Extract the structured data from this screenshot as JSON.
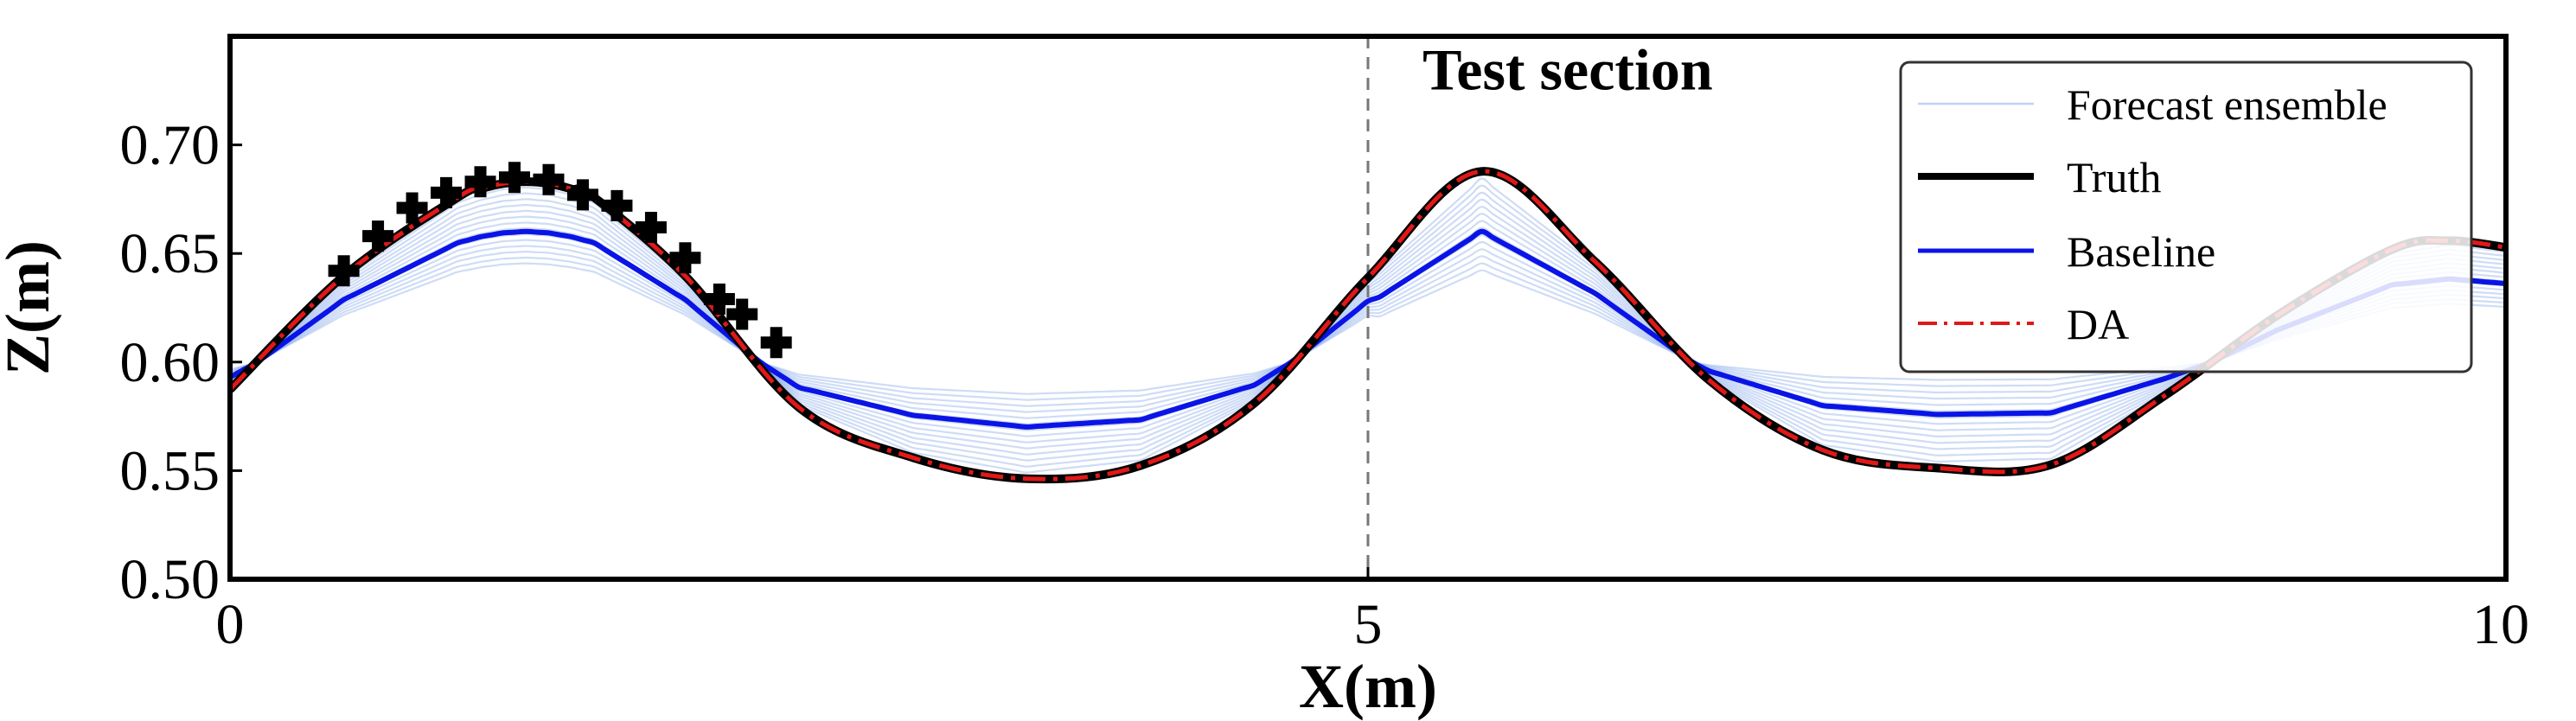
{
  "chart_data": {
    "type": "line",
    "xlabel": "X(m)",
    "ylabel": "Z(m)",
    "xlim": [
      0,
      10
    ],
    "ylim": [
      0.5,
      0.75
    ],
    "xticks": [
      0,
      5,
      10
    ],
    "xtick_labels": [
      "0",
      "5",
      "10"
    ],
    "yticks": [
      0.5,
      0.55,
      0.6,
      0.65,
      0.7
    ],
    "ytick_labels": [
      "0.50",
      "0.55",
      "0.60",
      "0.65",
      "0.70"
    ],
    "grid": false,
    "legend_position": "top-right",
    "annotations": [
      {
        "text": "Test section",
        "x": 5.24,
        "y": 0.7255
      }
    ],
    "vline": {
      "x": 5,
      "style": "dashed",
      "color": "#777777"
    },
    "truth": [
      [
        0.0,
        0.5874
      ],
      [
        0.5,
        0.6397
      ],
      [
        1.0,
        0.6758
      ],
      [
        1.1,
        0.6797
      ],
      [
        1.2,
        0.6822
      ],
      [
        1.3,
        0.6831
      ],
      [
        1.4,
        0.6822
      ],
      [
        1.5,
        0.6797
      ],
      [
        1.6,
        0.6758
      ],
      [
        2.0,
        0.6397
      ],
      [
        2.5,
        0.5791
      ],
      [
        3.0,
        0.556
      ],
      [
        3.5,
        0.5463
      ],
      [
        4.0,
        0.5523
      ],
      [
        4.5,
        0.581
      ],
      [
        5.0,
        0.6388
      ],
      [
        5.5,
        0.6878
      ],
      [
        6.0,
        0.646
      ],
      [
        6.5,
        0.5916
      ],
      [
        7.0,
        0.5594
      ],
      [
        7.5,
        0.5512
      ],
      [
        8.0,
        0.5527
      ],
      [
        8.5,
        0.5845
      ],
      [
        9.0,
        0.6218
      ],
      [
        9.5,
        0.6519
      ],
      [
        9.75,
        0.6559
      ],
      [
        10.0,
        0.6528
      ]
    ],
    "series": [
      {
        "name": "Forecast ensemble",
        "color": "#1f5fd6",
        "members": [
          {
            "amp1": 0.0028,
            "amp2": 0.0032
          },
          {
            "amp1": 0.0055,
            "amp2": 0.0063
          },
          {
            "amp1": 0.0083,
            "amp2": 0.0095
          },
          {
            "amp1": 0.011,
            "amp2": 0.0126
          },
          {
            "amp1": 0.0138,
            "amp2": 0.0158
          },
          {
            "amp1": 0.0165,
            "amp2": 0.0189
          },
          {
            "amp1": 0.0193,
            "amp2": 0.0221
          },
          {
            "amp1": 0.022,
            "amp2": 0.0252
          },
          {
            "amp1": 0.0248,
            "amp2": 0.0284
          },
          {
            "amp1": 0.0275,
            "amp2": 0.0315
          },
          {
            "amp1": 0.0303,
            "amp2": 0.0347
          },
          {
            "amp1": 0.033,
            "amp2": 0.0378
          },
          {
            "amp1": 0.0358,
            "amp2": 0.041
          },
          {
            "amp1": 0.0385,
            "amp2": 0.0441
          }
        ]
      },
      {
        "name": "Truth",
        "color": "#000000"
      },
      {
        "name": "Baseline",
        "color": "#0a14e6",
        "amp1": 0.0235,
        "amp2": 0.0268
      },
      {
        "name": "DA",
        "color": "#e01818"
      }
    ],
    "observations": [
      [
        0.5,
        0.642
      ],
      [
        0.65,
        0.658
      ],
      [
        0.8,
        0.671
      ],
      [
        0.95,
        0.678
      ],
      [
        1.1,
        0.683
      ],
      [
        1.25,
        0.685
      ],
      [
        1.4,
        0.684
      ],
      [
        1.55,
        0.677
      ],
      [
        1.7,
        0.672
      ],
      [
        1.85,
        0.662
      ],
      [
        2.0,
        0.648
      ],
      [
        2.15,
        0.629
      ],
      [
        2.25,
        0.622
      ],
      [
        2.4,
        0.609
      ]
    ]
  }
}
